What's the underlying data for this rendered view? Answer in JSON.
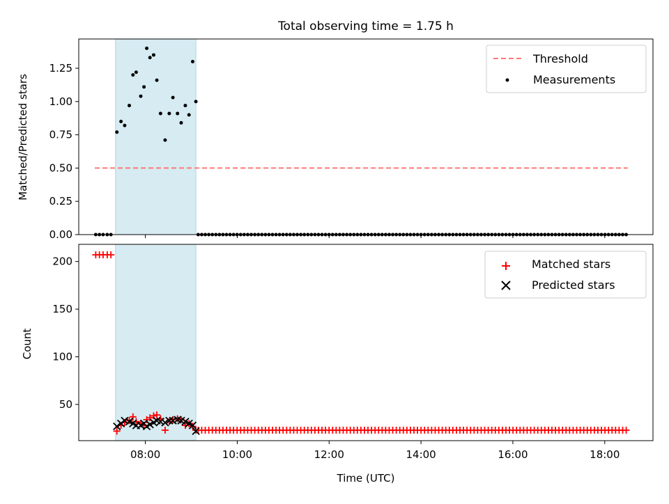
{
  "figure": {
    "title": "Total observing time = 1.75 h",
    "xlabel": "Time (UTC)",
    "x_ticks": [
      "08:00",
      "10:00",
      "12:00",
      "14:00",
      "16:00",
      "18:00"
    ],
    "x_tick_hours": [
      8,
      10,
      12,
      14,
      16,
      18
    ],
    "xlim_hours": [
      6.55,
      19.05
    ],
    "shaded_span_hours": [
      7.35,
      9.1
    ],
    "shade_color": "#add8e6"
  },
  "chart_data": [
    {
      "type": "scatter",
      "ylabel": "Matched/Predicted stars",
      "ylim": [
        0,
        1.47
      ],
      "y_ticks": [
        "0.00",
        "0.25",
        "0.50",
        "0.75",
        "1.00",
        "1.25"
      ],
      "y_tick_values": [
        0,
        0.25,
        0.5,
        0.75,
        1.0,
        1.25
      ],
      "legend": {
        "placement": "top-right",
        "entries": [
          "Threshold",
          "Measurements"
        ]
      },
      "threshold": {
        "name": "Threshold",
        "value": 0.5,
        "x_range_hours": [
          6.9,
          18.5
        ],
        "color": "#ff7777"
      },
      "measurements": {
        "name": "Measurements",
        "color": "#000000",
        "x_hours": [
          6.92,
          7.0,
          7.08,
          7.17,
          7.25,
          7.38,
          7.47,
          7.55,
          7.65,
          7.73,
          7.8,
          7.9,
          7.97,
          8.03,
          8.1,
          8.18,
          8.25,
          8.33,
          8.43,
          8.52,
          8.6,
          8.7,
          8.78,
          8.87,
          8.95,
          9.03,
          9.1
        ],
        "y": [
          0,
          0,
          0,
          0,
          0,
          0.77,
          0.85,
          0.82,
          0.97,
          1.2,
          1.22,
          1.04,
          1.11,
          1.4,
          1.33,
          1.35,
          1.16,
          0.91,
          0.71,
          0.91,
          1.03,
          0.91,
          0.84,
          0.97,
          0.9,
          1.3,
          1.0
        ],
        "zero_run": {
          "start_hours": 9.15,
          "end_hours": 18.5,
          "step_hours": 0.077,
          "y": 0
        }
      }
    },
    {
      "type": "scatter",
      "ylabel": "Count",
      "ylim": [
        12,
        218
      ],
      "y_ticks": [
        "50",
        "100",
        "150",
        "200"
      ],
      "y_tick_values": [
        50,
        100,
        150,
        200
      ],
      "legend": {
        "placement": "top-right",
        "entries": [
          "Matched stars",
          "Predicted stars"
        ]
      },
      "series": [
        {
          "name": "Matched stars",
          "marker": "plus",
          "color": "#ff0000",
          "x_hours": [
            6.92,
            7.0,
            7.08,
            7.17,
            7.25,
            7.38,
            7.47,
            7.55,
            7.65,
            7.73,
            7.8,
            7.9,
            7.97,
            8.03,
            8.1,
            8.18,
            8.25,
            8.33,
            8.43,
            8.52,
            8.6,
            8.7,
            8.78,
            8.87,
            8.95,
            9.03,
            9.1
          ],
          "y": [
            207,
            207,
            207,
            207,
            207,
            22,
            28,
            31,
            33,
            37,
            32,
            30,
            28,
            34,
            36,
            38,
            39,
            35,
            23,
            32,
            34,
            35,
            34,
            28,
            30,
            27,
            23
          ],
          "constant_run": {
            "start_hours": 9.15,
            "end_hours": 18.5,
            "step_hours": 0.077,
            "y": 23
          }
        },
        {
          "name": "Predicted stars",
          "marker": "x",
          "color": "#000000",
          "x_hours": [
            7.38,
            7.47,
            7.55,
            7.65,
            7.73,
            7.8,
            7.9,
            7.97,
            8.03,
            8.1,
            8.18,
            8.25,
            8.33,
            8.43,
            8.52,
            8.6,
            8.7,
            8.78,
            8.87,
            8.95,
            9.03,
            9.1
          ],
          "y": [
            27,
            30,
            33,
            32,
            30,
            28,
            28,
            30,
            27,
            29,
            31,
            33,
            32,
            31,
            33,
            33,
            34,
            33,
            32,
            30,
            28,
            22
          ]
        }
      ]
    }
  ]
}
